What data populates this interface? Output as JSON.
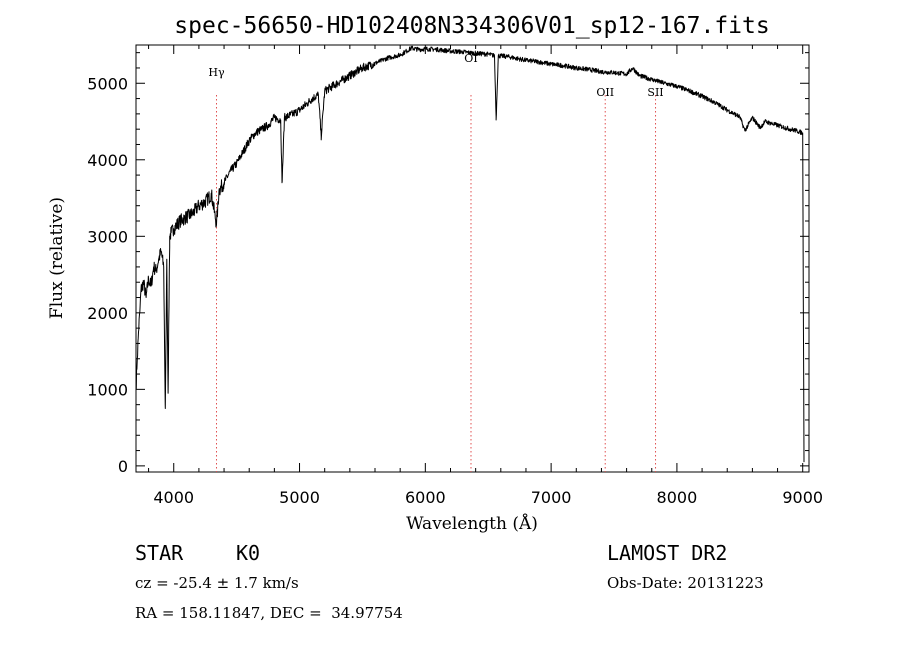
{
  "chart_data": {
    "type": "line",
    "title": "spec-56650-HD102408N334306V01_sp12-167.fits",
    "xlabel": "Wavelength (Å)",
    "ylabel": "Flux (relative)",
    "xlim": [
      3700,
      9050
    ],
    "ylim": [
      -80,
      5500
    ],
    "xticks": [
      4000,
      5000,
      6000,
      7000,
      8000,
      9000
    ],
    "yticks": [
      0,
      1000,
      2000,
      3000,
      4000,
      5000
    ],
    "grid": false,
    "legend": "none",
    "series": [
      {
        "x": [
          3700,
          3710,
          3720,
          3730,
          3740,
          3760,
          3780,
          3800,
          3820,
          3840,
          3860,
          3880,
          3900,
          3920,
          3933,
          3945,
          3955,
          3968,
          3980,
          4000,
          4050,
          4100,
          4150,
          4200,
          4250,
          4300,
          4340,
          4360,
          4400,
          4450,
          4500,
          4550,
          4600,
          4650,
          4700,
          4750,
          4800,
          4850,
          4861,
          4880,
          4950,
          5000,
          5050,
          5100,
          5150,
          5172,
          5200,
          5300,
          5400,
          5500,
          5600,
          5700,
          5800,
          5850,
          5890,
          5950,
          6000,
          6100,
          6200,
          6300,
          6400,
          6500,
          6550,
          6563,
          6580,
          6650,
          6800,
          6900,
          7000,
          7100,
          7200,
          7300,
          7400,
          7500,
          7600,
          7650,
          7700,
          7800,
          7900,
          8000,
          8100,
          8200,
          8300,
          8400,
          8500,
          8540,
          8600,
          8662,
          8700,
          8800,
          8900,
          8950,
          9000,
          9010
        ],
        "y": [
          1000,
          1400,
          1750,
          2000,
          2300,
          2400,
          2200,
          2450,
          2350,
          2600,
          2550,
          2700,
          2800,
          2600,
          750,
          2700,
          950,
          3000,
          3050,
          3100,
          3200,
          3250,
          3300,
          3400,
          3450,
          3550,
          3150,
          3600,
          3700,
          3850,
          3950,
          4100,
          4250,
          4350,
          4400,
          4450,
          4550,
          4520,
          3700,
          4550,
          4600,
          4650,
          4720,
          4800,
          4850,
          4300,
          4900,
          5000,
          5100,
          5200,
          5260,
          5330,
          5370,
          5420,
          5460,
          5440,
          5450,
          5440,
          5420,
          5410,
          5390,
          5380,
          5360,
          4520,
          5360,
          5350,
          5300,
          5280,
          5250,
          5230,
          5200,
          5180,
          5150,
          5140,
          5120,
          5200,
          5100,
          5050,
          5000,
          4960,
          4900,
          4830,
          4750,
          4650,
          4560,
          4380,
          4550,
          4420,
          4500,
          4450,
          4400,
          4380,
          4350,
          50
        ]
      }
    ],
    "annotations": [
      {
        "label": "Hγ",
        "x": 4340
      },
      {
        "label": "OI",
        "x": 6363
      },
      {
        "label": "OII",
        "x": 7430
      },
      {
        "label": "SII",
        "x": 7830
      }
    ]
  },
  "info": {
    "class_label": "STAR",
    "subclass": "K0",
    "survey": "LAMOST DR2",
    "cz": "cz = -25.4 ± 1.7 km/s",
    "obs_date": "Obs-Date: 20131223",
    "coords": "RA = 158.11847, DEC =  34.97754"
  }
}
